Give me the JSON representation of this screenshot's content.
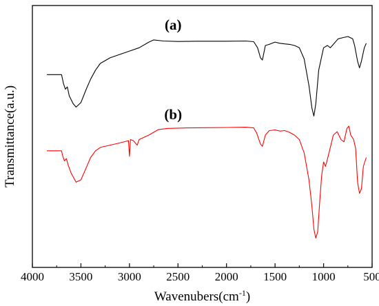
{
  "chart_data": {
    "type": "line",
    "title": "",
    "xlabel": "Wavenubers(cm",
    "xlabel_sup": "-1",
    "xlabel_suffix": ")",
    "ylabel": "Transmittance(a.u.)",
    "xlim": [
      4000,
      500
    ],
    "xreversed": true,
    "yticks_shown": false,
    "grid": false,
    "xticks": [
      {
        "value": 4000,
        "label": "4000"
      },
      {
        "value": 3500,
        "label": "3500"
      },
      {
        "value": 3000,
        "label": "3000"
      },
      {
        "value": 2500,
        "label": "2500"
      },
      {
        "value": 2000,
        "label": "2000"
      },
      {
        "value": 1500,
        "label": "1500"
      },
      {
        "value": 1000,
        "label": "1000"
      },
      {
        "value": 500,
        "label": "500"
      }
    ],
    "annotations": [
      {
        "text": "(a)",
        "x": 2550,
        "series": "a"
      },
      {
        "text": "(b)",
        "x": 2550,
        "series": "b"
      }
    ],
    "series": [
      {
        "name": "a",
        "color": "#000000",
        "points": [
          [
            3850,
            0.83
          ],
          [
            3700,
            0.83
          ],
          [
            3680,
            0.79
          ],
          [
            3660,
            0.765
          ],
          [
            3640,
            0.775
          ],
          [
            3620,
            0.735
          ],
          [
            3580,
            0.7
          ],
          [
            3550,
            0.685
          ],
          [
            3500,
            0.705
          ],
          [
            3450,
            0.76
          ],
          [
            3400,
            0.81
          ],
          [
            3350,
            0.85
          ],
          [
            3300,
            0.88
          ],
          [
            3200,
            0.905
          ],
          [
            3100,
            0.92
          ],
          [
            3000,
            0.935
          ],
          [
            2900,
            0.95
          ],
          [
            2800,
            0.975
          ],
          [
            2750,
            0.985
          ],
          [
            2650,
            0.98
          ],
          [
            2500,
            0.978
          ],
          [
            2300,
            0.979
          ],
          [
            2000,
            0.979
          ],
          [
            1800,
            0.98
          ],
          [
            1720,
            0.977
          ],
          [
            1680,
            0.95
          ],
          [
            1650,
            0.905
          ],
          [
            1630,
            0.895
          ],
          [
            1600,
            0.96
          ],
          [
            1560,
            0.965
          ],
          [
            1520,
            0.972
          ],
          [
            1500,
            0.975
          ],
          [
            1450,
            0.97
          ],
          [
            1400,
            0.967
          ],
          [
            1350,
            0.965
          ],
          [
            1300,
            0.96
          ],
          [
            1250,
            0.95
          ],
          [
            1200,
            0.9
          ],
          [
            1150,
            0.78
          ],
          [
            1120,
            0.68
          ],
          [
            1100,
            0.645
          ],
          [
            1080,
            0.7
          ],
          [
            1050,
            0.85
          ],
          [
            1000,
            0.95
          ],
          [
            960,
            0.96
          ],
          [
            930,
            0.95
          ],
          [
            900,
            0.965
          ],
          [
            850,
            0.99
          ],
          [
            800,
            0.995
          ],
          [
            750,
            1.0
          ],
          [
            700,
            0.99
          ],
          [
            680,
            0.96
          ],
          [
            650,
            0.89
          ],
          [
            630,
            0.86
          ],
          [
            610,
            0.89
          ],
          [
            580,
            0.95
          ],
          [
            560,
            0.97
          ]
        ]
      },
      {
        "name": "b",
        "color": "#ff0000",
        "points": [
          [
            3850,
            0.49
          ],
          [
            3700,
            0.49
          ],
          [
            3690,
            0.47
          ],
          [
            3670,
            0.445
          ],
          [
            3650,
            0.455
          ],
          [
            3630,
            0.425
          ],
          [
            3600,
            0.39
          ],
          [
            3550,
            0.35
          ],
          [
            3500,
            0.36
          ],
          [
            3450,
            0.41
          ],
          [
            3400,
            0.46
          ],
          [
            3350,
            0.49
          ],
          [
            3300,
            0.505
          ],
          [
            3200,
            0.515
          ],
          [
            3100,
            0.525
          ],
          [
            3010,
            0.535
          ],
          [
            3000,
            0.465
          ],
          [
            2990,
            0.54
          ],
          [
            2960,
            0.535
          ],
          [
            2920,
            0.515
          ],
          [
            2900,
            0.54
          ],
          [
            2800,
            0.56
          ],
          [
            2700,
            0.585
          ],
          [
            2600,
            0.59
          ],
          [
            2400,
            0.592
          ],
          [
            2200,
            0.593
          ],
          [
            2000,
            0.594
          ],
          [
            1800,
            0.595
          ],
          [
            1720,
            0.592
          ],
          [
            1690,
            0.57
          ],
          [
            1650,
            0.52
          ],
          [
            1630,
            0.51
          ],
          [
            1600,
            0.56
          ],
          [
            1560,
            0.58
          ],
          [
            1500,
            0.583
          ],
          [
            1450,
            0.578
          ],
          [
            1400,
            0.58
          ],
          [
            1350,
            0.572
          ],
          [
            1300,
            0.56
          ],
          [
            1250,
            0.54
          ],
          [
            1200,
            0.48
          ],
          [
            1150,
            0.36
          ],
          [
            1120,
            0.24
          ],
          [
            1100,
            0.14
          ],
          [
            1080,
            0.1
          ],
          [
            1060,
            0.13
          ],
          [
            1040,
            0.26
          ],
          [
            1020,
            0.38
          ],
          [
            1000,
            0.44
          ],
          [
            980,
            0.42
          ],
          [
            950,
            0.47
          ],
          [
            900,
            0.56
          ],
          [
            860,
            0.575
          ],
          [
            820,
            0.54
          ],
          [
            790,
            0.53
          ],
          [
            760,
            0.59
          ],
          [
            740,
            0.6
          ],
          [
            720,
            0.56
          ],
          [
            690,
            0.54
          ],
          [
            670,
            0.5
          ],
          [
            650,
            0.35
          ],
          [
            630,
            0.3
          ],
          [
            610,
            0.32
          ],
          [
            590,
            0.42
          ],
          [
            560,
            0.46
          ]
        ]
      }
    ]
  }
}
